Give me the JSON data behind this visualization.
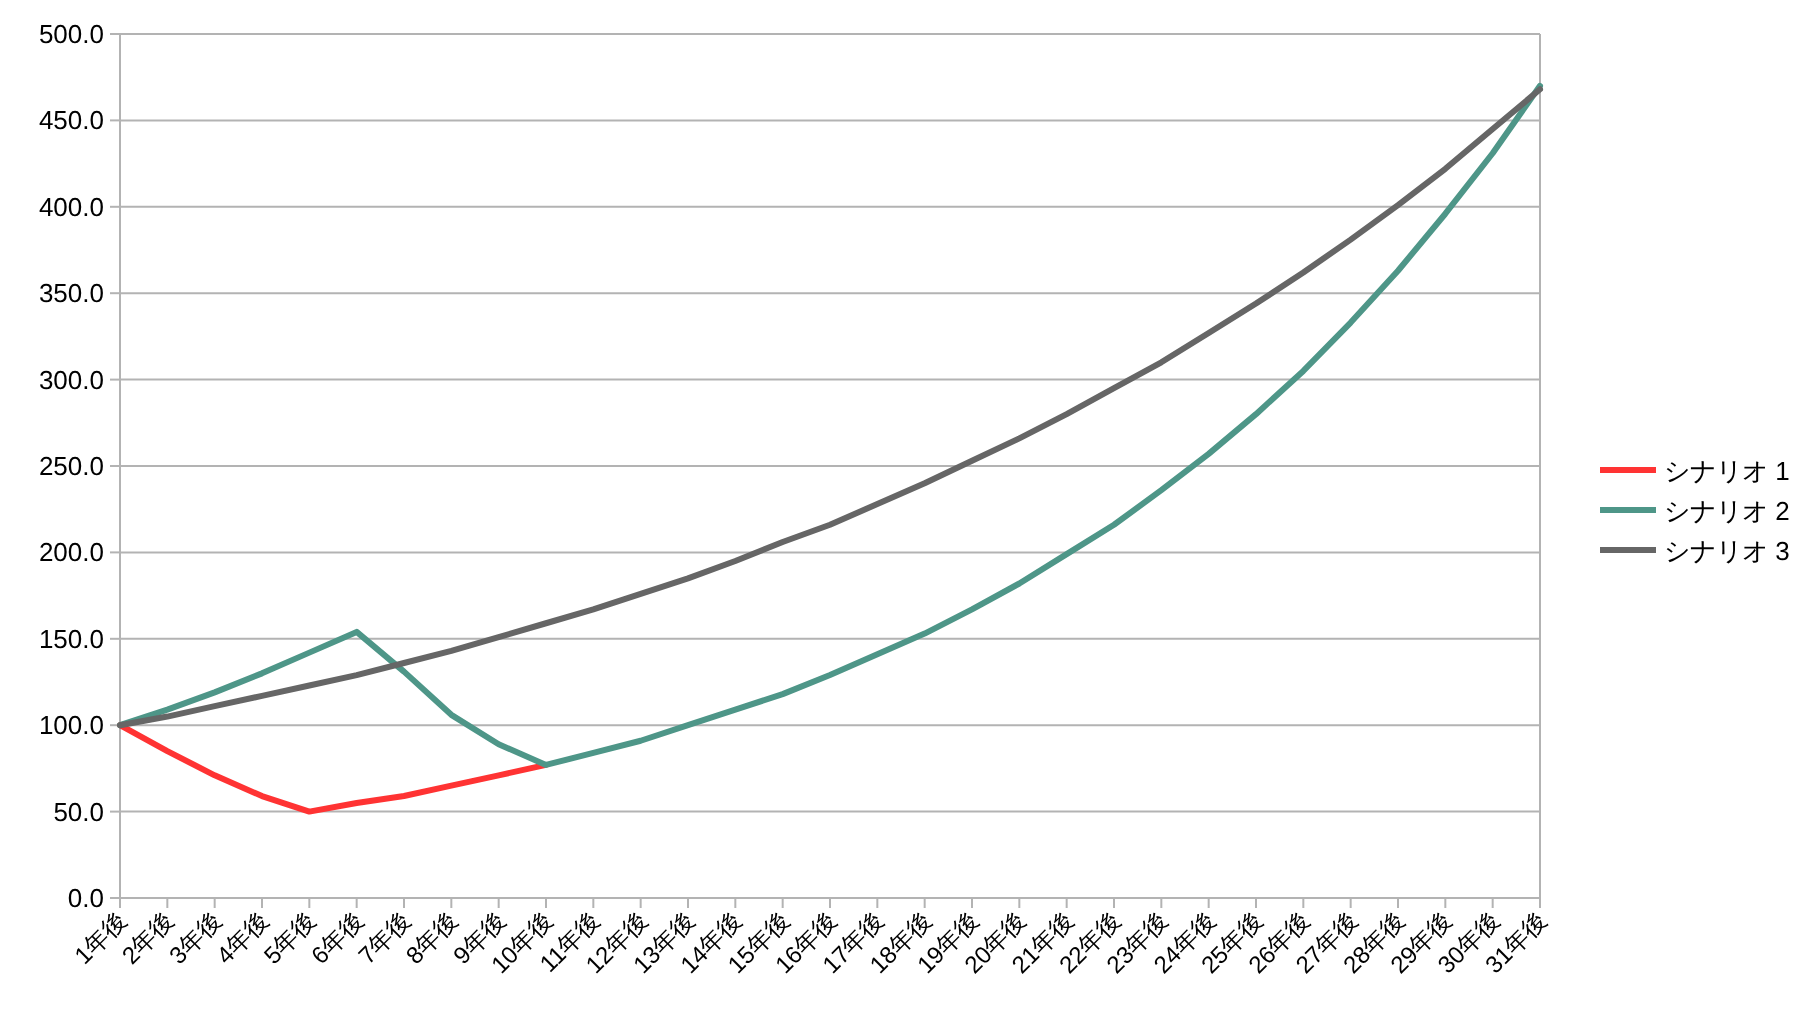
{
  "chart_data": {
    "type": "line",
    "categories": [
      "1年後",
      "2年後",
      "3年後",
      "4年後",
      "5年後",
      "6年後",
      "7年後",
      "8年後",
      "9年後",
      "10年後",
      "11年後",
      "12年後",
      "13年後",
      "14年後",
      "15年後",
      "16年後",
      "17年後",
      "18年後",
      "19年後",
      "20年後",
      "21年後",
      "22年後",
      "23年後",
      "24年後",
      "25年後",
      "26年後",
      "27年後",
      "28年後",
      "29年後",
      "30年後",
      "31年後"
    ],
    "series": [
      {
        "name": "シナリオ 1",
        "color": "#ff3333",
        "values": [
          100,
          85,
          71,
          59,
          50,
          55,
          59,
          65,
          71,
          77,
          null,
          null,
          null,
          null,
          null,
          null,
          null,
          null,
          null,
          null,
          null,
          null,
          null,
          null,
          null,
          null,
          null,
          null,
          null,
          null,
          null
        ]
      },
      {
        "name": "シナリオ 2",
        "color": "#4e9688",
        "values": [
          100,
          109,
          119,
          130,
          142,
          154,
          131,
          106,
          89,
          77,
          84,
          91,
          100,
          109,
          118,
          129,
          141,
          153,
          167,
          182,
          199,
          216,
          236,
          257,
          280,
          305,
          333,
          363,
          396,
          431,
          470
        ]
      },
      {
        "name": "シナリオ 3",
        "color": "#666666",
        "values": [
          100,
          105,
          111,
          117,
          123,
          129,
          136,
          143,
          151,
          159,
          167,
          176,
          185,
          195,
          206,
          216,
          228,
          240,
          253,
          266,
          280,
          295,
          310,
          327,
          344,
          362,
          381,
          401,
          422,
          445,
          468
        ]
      }
    ],
    "ylim": [
      0,
      500
    ],
    "yticks": [
      {
        "value": 0,
        "label": "0.0"
      },
      {
        "value": 50,
        "label": "50.0"
      },
      {
        "value": 100,
        "label": "100.0"
      },
      {
        "value": 150,
        "label": "150.0"
      },
      {
        "value": 200,
        "label": "200.0"
      },
      {
        "value": 250,
        "label": "250.0"
      },
      {
        "value": 300,
        "label": "300.0"
      },
      {
        "value": 350,
        "label": "350.0"
      },
      {
        "value": 400,
        "label": "400.0"
      },
      {
        "value": 450,
        "label": "450.0"
      },
      {
        "value": 500,
        "label": "500.0"
      }
    ],
    "grid": "y",
    "legend": "right",
    "marker": "none",
    "line_style": "solid"
  }
}
